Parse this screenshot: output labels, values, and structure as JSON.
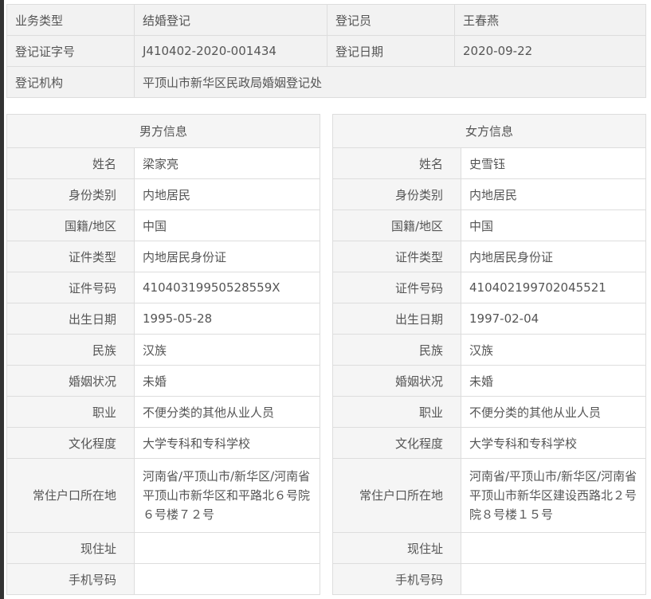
{
  "summary": {
    "business_type_label": "业务类型",
    "business_type": "结婚登记",
    "registrar_label": "登记员",
    "registrar": "王春燕",
    "cert_no_label": "登记证字号",
    "cert_no": "J410402-2020-001434",
    "date_label": "登记日期",
    "date": "2020-09-22",
    "office_label": "登记机构",
    "office": "平顶山市新华区民政局婚姻登记处"
  },
  "labels": [
    "姓名",
    "身份类别",
    "国籍/地区",
    "证件类型",
    "证件号码",
    "出生日期",
    "民族",
    "婚姻状况",
    "职业",
    "文化程度",
    "常住户口所在地",
    "现住址",
    "手机号码"
  ],
  "male": {
    "title": "男方信息",
    "values": [
      "梁家亮",
      "内地居民",
      "中国",
      "内地居民身份证",
      "41040319950528559X",
      "1995-05-28",
      "汉族",
      "未婚",
      "不便分类的其他从业人员",
      "大学专科和专科学校",
      "河南省/平顶山市/新华区/河南省平顶山市新华区和平路北６号院６号楼７２号",
      "",
      ""
    ]
  },
  "female": {
    "title": "女方信息",
    "values": [
      "史雪钰",
      "内地居民",
      "中国",
      "内地居民身份证",
      "410402199702045521",
      "1997-02-04",
      "汉族",
      "未婚",
      "不便分类的其他从业人员",
      "大学专科和专科学校",
      "河南省/平顶山市/新华区/河南省平顶山市新华区建设西路北２号院８号楼１５号",
      "",
      ""
    ]
  }
}
